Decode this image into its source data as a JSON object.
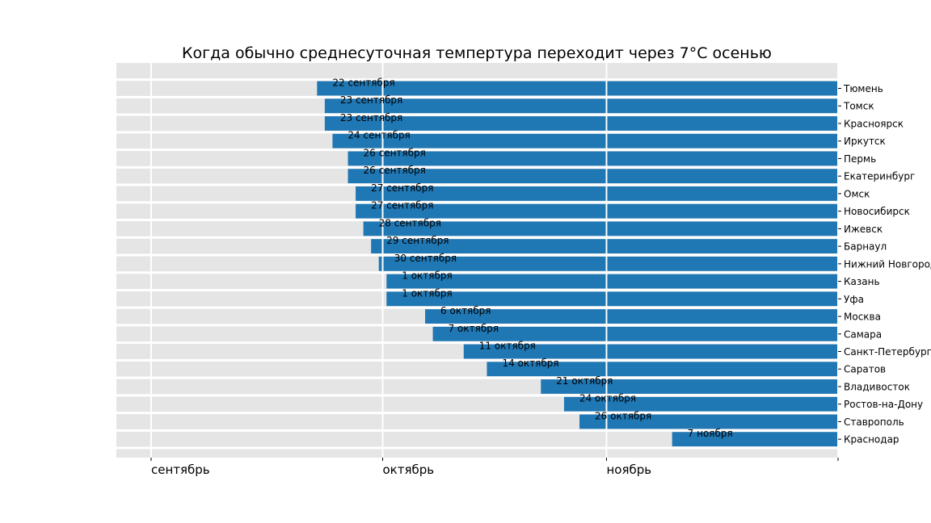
{
  "chart_data": {
    "type": "bar",
    "orientation": "horizontal",
    "title": "Когда обычно среднесуточная темпертура переходит через 7°C осенью",
    "xlabel": "",
    "ylabel": "",
    "grid": true,
    "x_domain_days": [
      -4.5,
      89
    ],
    "x_ticks": [
      {
        "label": "сентябрь",
        "day": 0
      },
      {
        "label": "октябрь",
        "day": 30
      },
      {
        "label": "ноябрь",
        "day": 59
      },
      {
        "label": "",
        "day": 89
      }
    ],
    "bar_end_day": 89,
    "colors": {
      "bar": "#1f77b4",
      "background": "#e5e5e5",
      "grid": "#ffffff"
    },
    "series": [
      {
        "city": "Тюмень",
        "label": "22 сентября",
        "start_day": 21.5
      },
      {
        "city": "Томск",
        "label": "23 сентября",
        "start_day": 22.5
      },
      {
        "city": "Красноярск",
        "label": "23 сентября",
        "start_day": 22.5
      },
      {
        "city": "Иркутск",
        "label": "24 сентября",
        "start_day": 23.5
      },
      {
        "city": "Пермь",
        "label": "26 сентября",
        "start_day": 25.5
      },
      {
        "city": "Екатеринбург",
        "label": "26 сентября",
        "start_day": 25.5
      },
      {
        "city": "Омск",
        "label": "27 сентября",
        "start_day": 26.5
      },
      {
        "city": "Новосибирск",
        "label": "27 сентября",
        "start_day": 26.5
      },
      {
        "city": "Ижевск",
        "label": "28 сентября",
        "start_day": 27.5
      },
      {
        "city": "Барнаул",
        "label": "29 сентября",
        "start_day": 28.5
      },
      {
        "city": "Нижний Новгород",
        "label": "30 сентября",
        "start_day": 29.5
      },
      {
        "city": "Казань",
        "label": "1 октября",
        "start_day": 30.5
      },
      {
        "city": "Уфа",
        "label": "1 октября",
        "start_day": 30.5
      },
      {
        "city": "Москва",
        "label": "6 октября",
        "start_day": 35.5
      },
      {
        "city": "Самара",
        "label": "7 октября",
        "start_day": 36.5
      },
      {
        "city": "Санкт-Петербург",
        "label": "11 октября",
        "start_day": 40.5
      },
      {
        "city": "Саратов",
        "label": "14 октября",
        "start_day": 43.5
      },
      {
        "city": "Владивосток",
        "label": "21 октября",
        "start_day": 50.5
      },
      {
        "city": "Ростов-на-Дону",
        "label": "24 октября",
        "start_day": 53.5
      },
      {
        "city": "Ставрополь",
        "label": "26 октября",
        "start_day": 55.5
      },
      {
        "city": "Краснодар",
        "label": "7 ноября",
        "start_day": 67.5
      }
    ]
  }
}
